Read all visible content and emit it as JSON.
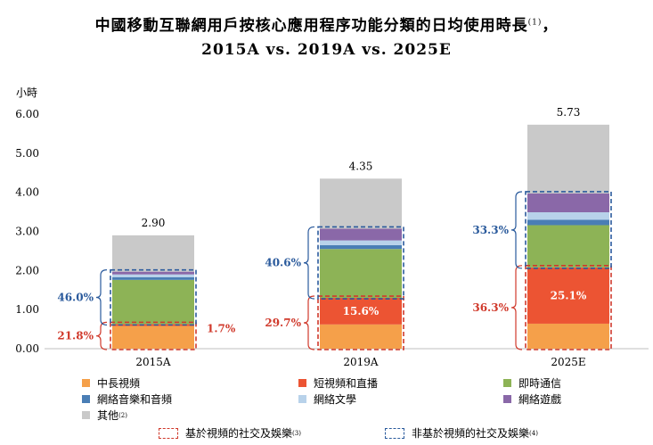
{
  "title": {
    "line1": "中國移動互聯網用戶按核心應用程序功能分類的日均使用時長",
    "line1_sup": "(1)",
    "line1_tail": "，",
    "line2": "2015A vs. 2019A vs. 2025E"
  },
  "colors": {
    "中長視頻": "#f5a04a",
    "短視頻和直播": "#ec5433",
    "即時通信": "#8db356",
    "網絡音樂和音頻": "#4a7eb5",
    "網絡文學": "#b8d2ea",
    "網絡遊戲": "#8a68a8",
    "其他": "#c9c9c9",
    "social_bracket": "#d0392b",
    "nonsocial_bracket": "#2a5a9c"
  },
  "chart_data": {
    "type": "bar",
    "stacked": true,
    "ylabel": "小時",
    "ylim": [
      0,
      6
    ],
    "yticks": [
      "0.00",
      "1.00",
      "2.00",
      "3.00",
      "4.00",
      "5.00",
      "6.00"
    ],
    "categories": [
      "2015A",
      "2019A",
      "2025E"
    ],
    "totals": [
      "2.90",
      "4.35",
      "5.73"
    ],
    "series": [
      {
        "name": "中長視頻",
        "values": [
          0.58,
          0.62,
          0.64
        ]
      },
      {
        "name": "短視頻和直播",
        "values": [
          0.05,
          0.68,
          1.44
        ]
      },
      {
        "name": "即時通信",
        "values": [
          1.13,
          1.25,
          1.08
        ]
      },
      {
        "name": "網絡音樂和音頻",
        "values": [
          0.07,
          0.1,
          0.14
        ]
      },
      {
        "name": "網絡文學",
        "values": [
          0.07,
          0.12,
          0.19
        ]
      },
      {
        "name": "網絡遊戲",
        "values": [
          0.07,
          0.3,
          0.48
        ]
      },
      {
        "name": "其他",
        "values": [
          0.93,
          1.28,
          1.76
        ]
      }
    ],
    "segment_labels": [
      {
        "category": "2019A",
        "series": "短視頻和直播",
        "text": "15.6%"
      },
      {
        "category": "2025E",
        "series": "短視頻和直播",
        "text": "25.1%"
      }
    ],
    "annotations": [
      {
        "category": "2015A",
        "group": "social",
        "text": "21.8%",
        "side": "left"
      },
      {
        "category": "2015A",
        "group": "social_extra",
        "text": "1.7%",
        "side": "right"
      },
      {
        "category": "2015A",
        "group": "nonsocial",
        "text": "46.0%",
        "side": "left"
      },
      {
        "category": "2019A",
        "group": "social",
        "text": "29.7%",
        "side": "left"
      },
      {
        "category": "2019A",
        "group": "nonsocial",
        "text": "40.6%",
        "side": "left"
      },
      {
        "category": "2025E",
        "group": "social",
        "text": "36.3%",
        "side": "left"
      },
      {
        "category": "2025E",
        "group": "nonsocial",
        "text": "33.3%",
        "side": "left"
      }
    ],
    "brackets": {
      "social": {
        "from_series": 0,
        "to_series": 1
      },
      "nonsocial": {
        "from_series": 2,
        "to_series": 5
      }
    }
  },
  "legend": {
    "items": [
      {
        "name": "中長視頻",
        "sup": ""
      },
      {
        "name": "短視頻和直播",
        "sup": ""
      },
      {
        "name": "即時通信",
        "sup": ""
      },
      {
        "name": "網絡音樂和音頻",
        "sup": ""
      },
      {
        "name": "網絡文學",
        "sup": ""
      },
      {
        "name": "網絡遊戲",
        "sup": ""
      },
      {
        "name": "其他",
        "sup": "(2)"
      }
    ],
    "brackets": [
      {
        "label": "基於視頻的社交及娛樂",
        "sup": "(3)"
      },
      {
        "label": "非基於視頻的社交及娛樂",
        "sup": "(4)"
      }
    ]
  }
}
